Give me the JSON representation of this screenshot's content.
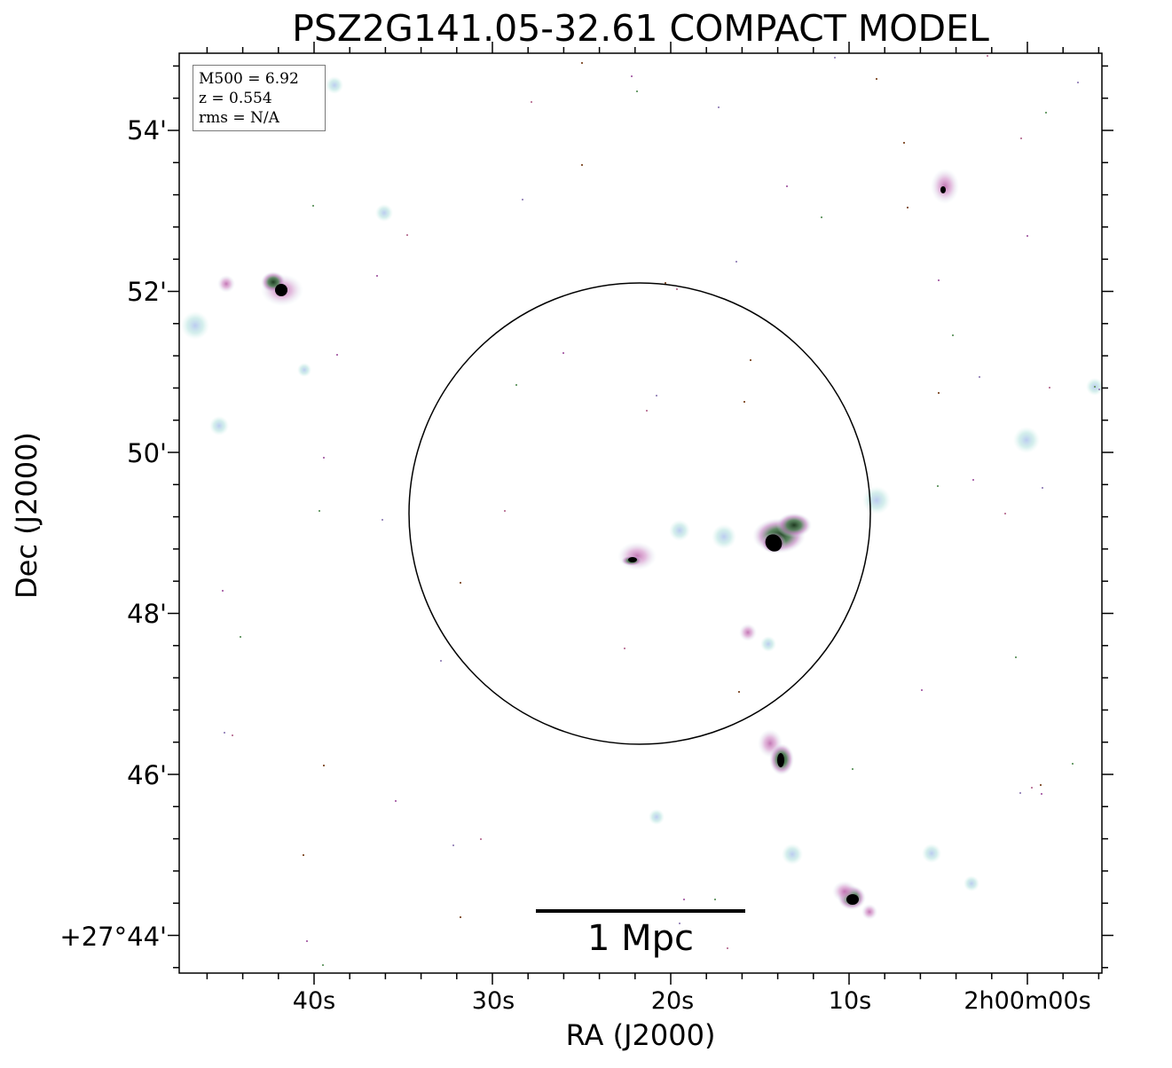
{
  "chart_data": {
    "type": "image",
    "title": "PSZ2G141.05-32.61 COMPACT MODEL",
    "xlabel": "RA (J2000)",
    "ylabel": "Dec (J2000)",
    "x_ticks": [
      "40s",
      "30s",
      "20s",
      "10s",
      "2h00m00s"
    ],
    "y_ticks": [
      "54'",
      "52'",
      "50'",
      "48'",
      "46'",
      "+27°44'"
    ],
    "info": {
      "m500": "M500 = 6.92",
      "z": "z = 0.554",
      "rms": "rms = N/A"
    },
    "scale_bar": {
      "label": "1 Mpc"
    },
    "colors": {
      "frame": "#000000",
      "halo_cyan": "#a8dcd8",
      "halo_magenta": "#d890c0",
      "core_green": "#2f5a32",
      "core_black": "#000000"
    }
  }
}
